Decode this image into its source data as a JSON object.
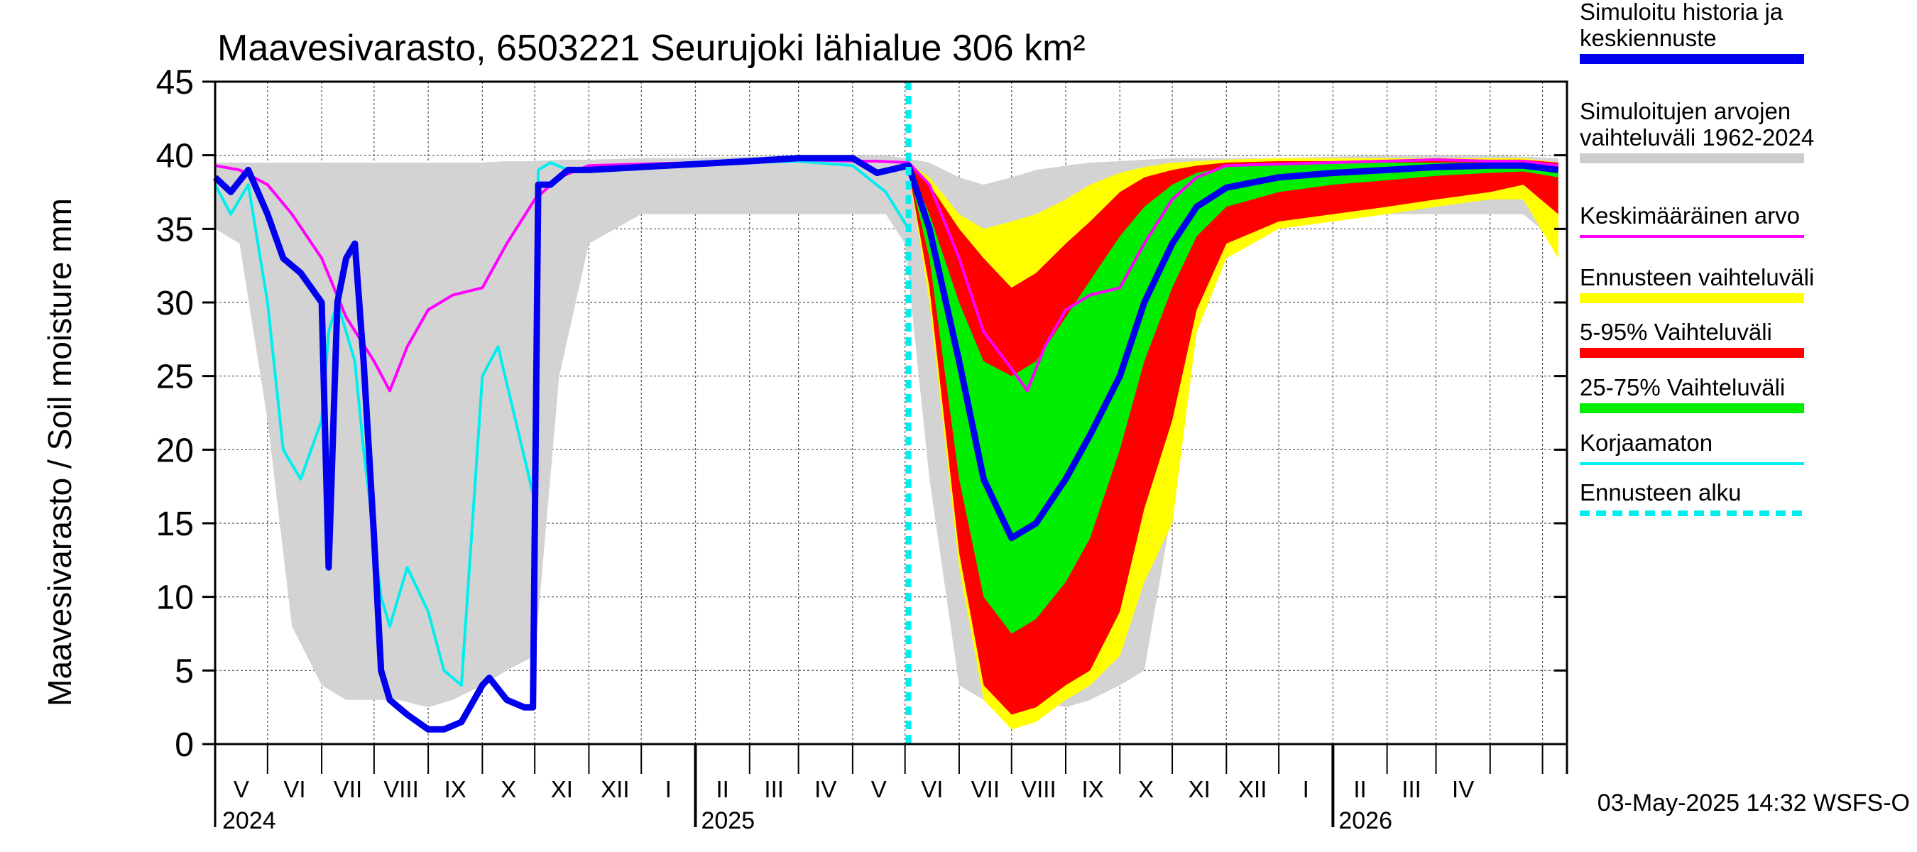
{
  "chart_data": {
    "type": "area",
    "title": "Maavesivarasto, 6503221 Seurujoki lähialue 306 km²",
    "ylabel": "Maavesivarasto / Soil moisture   mm",
    "ylim": [
      0,
      45
    ],
    "yticks": [
      0,
      5,
      10,
      15,
      20,
      25,
      30,
      35,
      40,
      45
    ],
    "xlim": [
      "2024-04-01",
      "2026-05-15"
    ],
    "month_labels": [
      "V",
      "VI",
      "VII",
      "VIII",
      "IX",
      "X",
      "XI",
      "XII",
      "I",
      "II",
      "III",
      "IV",
      "V",
      "VI",
      "VII",
      "VIII",
      "IX",
      "X",
      "XI",
      "XII",
      "I",
      "II",
      "III",
      "IV"
    ],
    "year_labels": [
      "2024",
      "2025",
      "2026"
    ],
    "forecast_start": "2025-05-03",
    "footer": "03-May-2025 14:32 WSFS-O",
    "grid": true,
    "legend_position": "right",
    "legend": [
      {
        "label_lines": [
          "Simuloitu historia ja",
          "keskiennuste"
        ],
        "color": "#0000ee",
        "style": "thick"
      },
      {
        "label_lines": [
          "Simuloitujen arvojen",
          "vaihteluväli 1962-2024"
        ],
        "color": "#cccccc",
        "style": "thick"
      },
      {
        "label_lines": [
          "Keskimääräinen arvo"
        ],
        "color": "#ff00ff",
        "style": "line"
      },
      {
        "label_lines": [
          "Ennusteen vaihteluväli"
        ],
        "color": "#ffff00",
        "style": "thick"
      },
      {
        "label_lines": [
          "5-95% Vaihteluväli"
        ],
        "color": "#ff0000",
        "style": "thick"
      },
      {
        "label_lines": [
          "25-75% Vaihteluväli"
        ],
        "color": "#00ee00",
        "style": "thick"
      },
      {
        "label_lines": [
          "Korjaamaton"
        ],
        "color": "#00eeee",
        "style": "line"
      },
      {
        "label_lines": [
          "Ennusteen alku"
        ],
        "color": "#00eeee",
        "style": "dashed"
      }
    ],
    "series": [
      {
        "key": "hist_range",
        "color": "#d3d3d3",
        "x": [
          "2024-04-01",
          "2024-04-15",
          "2024-05-01",
          "2024-05-15",
          "2024-06-01",
          "2024-06-15",
          "2024-07-01",
          "2024-07-15",
          "2024-08-01",
          "2024-08-15",
          "2024-09-01",
          "2024-09-15",
          "2024-10-01",
          "2024-10-15",
          "2024-11-01",
          "2024-12-01",
          "2025-01-01",
          "2025-02-01",
          "2025-03-01",
          "2025-04-01",
          "2025-04-20",
          "2025-05-01",
          "2025-05-15",
          "2025-06-01",
          "2025-06-15",
          "2025-07-01",
          "2025-07-15",
          "2025-08-01",
          "2025-08-15",
          "2025-09-01",
          "2025-09-15",
          "2025-10-01",
          "2025-10-15",
          "2025-11-01",
          "2025-12-01",
          "2026-01-01",
          "2026-02-01",
          "2026-03-01",
          "2026-04-01",
          "2026-04-20",
          "2026-05-10"
        ],
        "low": [
          35,
          34,
          22,
          8,
          4,
          3,
          3,
          3,
          2.5,
          3,
          4,
          5,
          6,
          25,
          34,
          36,
          36,
          36,
          36,
          36,
          36,
          34,
          18,
          4,
          3,
          3,
          3,
          2.5,
          3,
          4,
          5,
          16,
          28,
          34,
          36,
          36,
          36,
          36,
          36,
          36,
          34
        ],
        "high": [
          39.5,
          39.5,
          39.5,
          39.5,
          39.5,
          39.5,
          39.5,
          39.5,
          39.5,
          39.5,
          39.5,
          39.6,
          39.6,
          39.7,
          39.7,
          39.8,
          39.8,
          39.9,
          40,
          40,
          40,
          39.8,
          39.5,
          38.5,
          38,
          38.5,
          39,
          39.3,
          39.5,
          39.6,
          39.7,
          39.8,
          39.8,
          39.8,
          39.8,
          39.9,
          40,
          40,
          40,
          39.9,
          39.8
        ]
      },
      {
        "key": "forecast_range",
        "color": "#ffff00",
        "x": [
          "2025-05-03",
          "2025-05-15",
          "2025-06-01",
          "2025-06-15",
          "2025-07-01",
          "2025-07-15",
          "2025-08-01",
          "2025-08-15",
          "2025-09-01",
          "2025-09-15",
          "2025-10-01",
          "2025-10-15",
          "2025-11-01",
          "2025-12-01",
          "2026-01-01",
          "2026-02-01",
          "2026-03-01",
          "2026-04-01",
          "2026-04-20",
          "2026-05-10"
        ],
        "low": [
          39,
          30,
          12,
          3,
          1,
          1.5,
          3,
          4,
          6,
          11,
          15,
          28,
          33,
          35,
          35.5,
          36,
          36.5,
          37,
          37,
          33
        ],
        "high": [
          39.5,
          38.5,
          36,
          35,
          35.5,
          36,
          37,
          38,
          38.8,
          39.2,
          39.5,
          39.6,
          39.7,
          39.8,
          39.8,
          39.8,
          39.8,
          39.8,
          39.8,
          39.5
        ]
      },
      {
        "key": "p5_95",
        "color": "#ff0000",
        "x": [
          "2025-05-03",
          "2025-05-15",
          "2025-06-01",
          "2025-06-15",
          "2025-07-01",
          "2025-07-15",
          "2025-08-01",
          "2025-08-15",
          "2025-09-01",
          "2025-09-15",
          "2025-10-01",
          "2025-10-15",
          "2025-11-01",
          "2025-12-01",
          "2026-01-01",
          "2026-02-01",
          "2026-03-01",
          "2026-04-01",
          "2026-04-20",
          "2026-05-10"
        ],
        "low": [
          39,
          31,
          13,
          4,
          2,
          2.5,
          4,
          5,
          9,
          16,
          22,
          29.5,
          34,
          35.5,
          36,
          36.5,
          37,
          37.5,
          38,
          36
        ],
        "high": [
          39.5,
          38,
          35,
          33,
          31,
          32,
          34,
          35.5,
          37.5,
          38.5,
          39,
          39.3,
          39.5,
          39.6,
          39.6,
          39.7,
          39.7,
          39.7,
          39.7,
          39.5
        ]
      },
      {
        "key": "p25_75",
        "color": "#00ee00",
        "x": [
          "2025-05-03",
          "2025-05-15",
          "2025-06-01",
          "2025-06-15",
          "2025-07-01",
          "2025-07-15",
          "2025-08-01",
          "2025-08-15",
          "2025-09-01",
          "2025-09-15",
          "2025-10-01",
          "2025-10-15",
          "2025-11-01",
          "2025-12-01",
          "2026-01-01",
          "2026-02-01",
          "2026-03-01",
          "2026-04-01",
          "2026-04-20",
          "2026-05-10"
        ],
        "low": [
          39,
          33,
          18,
          10,
          7.5,
          8.5,
          11,
          14,
          20,
          26,
          31,
          34.5,
          36.5,
          37.5,
          38,
          38.3,
          38.6,
          38.8,
          38.9,
          38.5
        ],
        "high": [
          39.3,
          36,
          30,
          26,
          25,
          26,
          29,
          31.5,
          34.5,
          36.5,
          38,
          38.8,
          39.2,
          39.4,
          39.5,
          39.5,
          39.5,
          39.5,
          39.5,
          39.3
        ]
      },
      {
        "key": "simulated",
        "color": "#0000ee",
        "x": [
          "2024-04-01",
          "2024-04-10",
          "2024-04-20",
          "2024-05-01",
          "2024-05-10",
          "2024-05-20",
          "2024-06-01",
          "2024-06-05",
          "2024-06-10",
          "2024-06-15",
          "2024-06-20",
          "2024-06-25",
          "2024-07-01",
          "2024-07-05",
          "2024-07-10",
          "2024-07-20",
          "2024-08-01",
          "2024-08-10",
          "2024-08-20",
          "2024-09-01",
          "2024-09-05",
          "2024-09-15",
          "2024-09-25",
          "2024-09-30",
          "2024-10-03",
          "2024-10-10",
          "2024-10-20",
          "2024-11-01",
          "2024-12-01",
          "2025-01-01",
          "2025-02-01",
          "2025-03-01",
          "2025-04-01",
          "2025-04-15",
          "2025-05-03",
          "2025-05-15",
          "2025-06-01",
          "2025-06-15",
          "2025-07-01",
          "2025-07-15",
          "2025-08-01",
          "2025-08-15",
          "2025-09-01",
          "2025-09-15",
          "2025-10-01",
          "2025-10-15",
          "2025-11-01",
          "2025-12-01",
          "2026-01-01",
          "2026-02-01",
          "2026-03-01",
          "2026-04-01",
          "2026-04-20",
          "2026-05-10"
        ],
        "y": [
          38.5,
          37.5,
          39,
          36,
          33,
          32,
          30,
          12,
          30,
          33,
          34,
          26,
          14,
          5,
          3,
          2,
          1,
          1,
          1.5,
          4,
          4.5,
          3,
          2.5,
          2.5,
          38,
          38,
          39,
          39,
          39.2,
          39.4,
          39.6,
          39.8,
          39.8,
          38.8,
          39.3,
          35,
          26,
          18,
          14,
          15,
          18,
          21,
          25,
          30,
          34,
          36.5,
          37.8,
          38.5,
          38.8,
          39,
          39.2,
          39.3,
          39.3,
          39
        ]
      },
      {
        "key": "mean",
        "color": "#ff00ff",
        "x": [
          "2024-04-01",
          "2024-04-15",
          "2024-05-01",
          "2024-05-15",
          "2024-06-01",
          "2024-06-15",
          "2024-07-01",
          "2024-07-10",
          "2024-07-20",
          "2024-08-01",
          "2024-08-15",
          "2024-09-01",
          "2024-09-15",
          "2024-10-01",
          "2024-10-15",
          "2024-11-01",
          "2024-12-01",
          "2025-01-01",
          "2025-02-01",
          "2025-03-01",
          "2025-04-01",
          "2025-04-15",
          "2025-05-03",
          "2025-05-15",
          "2025-06-01",
          "2025-06-15",
          "2025-07-01",
          "2025-07-10",
          "2025-07-20",
          "2025-08-01",
          "2025-08-15",
          "2025-09-01",
          "2025-09-15",
          "2025-10-01",
          "2025-10-15",
          "2025-11-01",
          "2025-12-01",
          "2026-01-01",
          "2026-02-01",
          "2026-03-01",
          "2026-04-01",
          "2026-04-20",
          "2026-05-10"
        ],
        "y": [
          39.3,
          39,
          38,
          36,
          33,
          29,
          26,
          24,
          27,
          29.5,
          30.5,
          31,
          34,
          37,
          38.5,
          39.3,
          39.4,
          39.5,
          39.6,
          39.7,
          39.6,
          39.6,
          39.5,
          38,
          33,
          28,
          25.5,
          24,
          27,
          29.5,
          30.5,
          31,
          34,
          37,
          38.5,
          39.3,
          39.4,
          39.5,
          39.6,
          39.7,
          39.6,
          39.6,
          39.3
        ]
      },
      {
        "key": "uncorrected",
        "color": "#00eeee",
        "x": [
          "2024-04-01",
          "2024-04-10",
          "2024-04-20",
          "2024-05-01",
          "2024-05-10",
          "2024-05-20",
          "2024-06-01",
          "2024-06-05",
          "2024-06-10",
          "2024-06-20",
          "2024-06-25",
          "2024-07-01",
          "2024-07-05",
          "2024-07-10",
          "2024-07-20",
          "2024-08-01",
          "2024-08-10",
          "2024-08-20",
          "2024-09-01",
          "2024-09-10",
          "2024-09-20",
          "2024-09-30",
          "2024-10-03",
          "2024-10-10",
          "2024-10-20",
          "2024-11-01",
          "2024-12-01",
          "2025-01-01",
          "2025-02-01",
          "2025-03-01",
          "2025-04-01",
          "2025-04-20",
          "2025-05-03"
        ],
        "y": [
          38,
          36,
          38,
          30,
          20,
          18,
          22,
          28,
          30,
          26,
          20,
          14,
          10,
          8,
          12,
          9,
          5,
          4,
          25,
          27,
          22,
          17,
          39,
          39.5,
          39,
          39,
          39.2,
          39.4,
          39.5,
          39.6,
          39.3,
          37.5,
          35
        ]
      }
    ]
  }
}
